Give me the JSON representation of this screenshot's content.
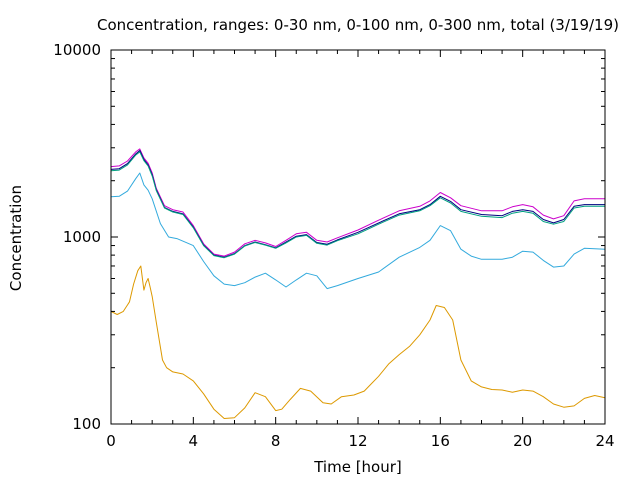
{
  "chart_data": {
    "type": "line",
    "title": "Concentration, ranges: 0-30 nm, 0-100 nm, 0-300 nm, total (3/19/19)",
    "xlabel": "Time [hour]",
    "ylabel": "Concentration",
    "xlim": [
      0,
      24
    ],
    "ylim": [
      100,
      10000
    ],
    "yscale": "log",
    "grid": false,
    "x_ticks": [
      0,
      4,
      8,
      12,
      16,
      20,
      24
    ],
    "x_tick_labels": [
      "0",
      "4",
      "8",
      "12",
      "16",
      "20",
      "24"
    ],
    "y_ticks": [
      100,
      1000,
      10000
    ],
    "y_tick_labels": [
      "100",
      "1000",
      "10000"
    ],
    "series": [
      {
        "color": "#cc00cc",
        "x": [
          0,
          0.4,
          0.8,
          1.2,
          1.4,
          1.6,
          1.8,
          2.0,
          2.2,
          2.6,
          3.0,
          3.5,
          4.0,
          4.5,
          5.0,
          5.5,
          6.0,
          6.5,
          7.0,
          7.5,
          8.0,
          8.5,
          9.0,
          9.5,
          10.0,
          10.5,
          11.0,
          12.0,
          13.0,
          14.0,
          15.0,
          15.5,
          16.0,
          16.5,
          17.0,
          18.0,
          19.0,
          19.5,
          20.0,
          20.5,
          21.0,
          21.5,
          22.0,
          22.5,
          23.0,
          24.0
        ],
        "y": [
          2380,
          2400,
          2550,
          2850,
          2960,
          2650,
          2480,
          2200,
          1820,
          1470,
          1400,
          1360,
          1150,
          920,
          810,
          790,
          830,
          920,
          960,
          930,
          890,
          960,
          1040,
          1060,
          960,
          940,
          990,
          1090,
          1230,
          1380,
          1460,
          1560,
          1730,
          1620,
          1470,
          1380,
          1380,
          1450,
          1490,
          1450,
          1310,
          1250,
          1300,
          1560,
          1600,
          1600
        ]
      },
      {
        "color": "#000080",
        "x": [
          0,
          0.4,
          0.8,
          1.2,
          1.4,
          1.6,
          1.8,
          2.0,
          2.2,
          2.6,
          3.0,
          3.5,
          4.0,
          4.5,
          5.0,
          5.5,
          6.0,
          6.5,
          7.0,
          7.5,
          8.0,
          8.5,
          9.0,
          9.5,
          10.0,
          10.5,
          11.0,
          12.0,
          13.0,
          14.0,
          15.0,
          15.5,
          16.0,
          16.5,
          17.0,
          18.0,
          19.0,
          19.5,
          20.0,
          20.5,
          21.0,
          21.5,
          22.0,
          22.5,
          23.0,
          24.0
        ],
        "y": [
          2300,
          2320,
          2470,
          2780,
          2900,
          2600,
          2430,
          2150,
          1790,
          1440,
          1370,
          1330,
          1130,
          905,
          800,
          780,
          815,
          900,
          940,
          910,
          875,
          940,
          1010,
          1030,
          935,
          915,
          965,
          1060,
          1190,
          1330,
          1400,
          1490,
          1650,
          1550,
          1400,
          1320,
          1300,
          1370,
          1400,
          1370,
          1240,
          1190,
          1240,
          1460,
          1490,
          1490
        ]
      },
      {
        "color": "#00a080",
        "x": [
          0,
          0.4,
          0.8,
          1.2,
          1.4,
          1.6,
          1.8,
          2.0,
          2.2,
          2.6,
          3.0,
          3.5,
          4.0,
          4.5,
          5.0,
          5.5,
          6.0,
          6.5,
          7.0,
          7.5,
          8.0,
          8.5,
          9.0,
          9.5,
          10.0,
          10.5,
          11.0,
          12.0,
          13.0,
          14.0,
          15.0,
          15.5,
          16.0,
          16.5,
          17.0,
          18.0,
          19.0,
          19.5,
          20.0,
          20.5,
          21.0,
          21.5,
          22.0,
          22.5,
          23.0,
          24.0
        ],
        "y": [
          2260,
          2280,
          2430,
          2740,
          2850,
          2560,
          2400,
          2120,
          1770,
          1430,
          1360,
          1320,
          1120,
          900,
          795,
          775,
          810,
          895,
          935,
          905,
          870,
          930,
          1000,
          1020,
          925,
          905,
          955,
          1040,
          1170,
          1310,
          1380,
          1470,
          1620,
          1520,
          1370,
          1290,
          1270,
          1340,
          1370,
          1340,
          1210,
          1170,
          1210,
          1430,
          1460,
          1460
        ]
      },
      {
        "color": "#33aadd",
        "x": [
          0,
          0.4,
          0.8,
          1.2,
          1.4,
          1.6,
          1.8,
          2.0,
          2.4,
          2.8,
          3.2,
          4.0,
          4.5,
          5.0,
          5.5,
          6.0,
          6.5,
          7.0,
          7.5,
          8.0,
          8.5,
          9.0,
          9.5,
          10.0,
          10.5,
          11.0,
          12.0,
          13.0,
          14.0,
          15.0,
          15.5,
          16.0,
          16.5,
          17.0,
          17.5,
          18.0,
          19.0,
          19.5,
          20.0,
          20.5,
          21.0,
          21.5,
          22.0,
          22.5,
          23.0,
          24.0
        ],
        "y": [
          1640,
          1650,
          1760,
          2050,
          2200,
          1900,
          1780,
          1600,
          1180,
          1000,
          980,
          900,
          740,
          620,
          560,
          550,
          570,
          610,
          640,
          590,
          540,
          590,
          640,
          620,
          530,
          550,
          600,
          650,
          780,
          880,
          960,
          1150,
          1080,
          860,
          790,
          760,
          760,
          780,
          840,
          830,
          750,
          690,
          700,
          810,
          870,
          860
        ]
      },
      {
        "color": "#dd9900",
        "x": [
          0,
          0.3,
          0.6,
          0.9,
          1.1,
          1.3,
          1.45,
          1.6,
          1.7,
          1.8,
          1.9,
          2.0,
          2.2,
          2.5,
          2.7,
          3.0,
          3.5,
          4.0,
          4.5,
          5.0,
          5.5,
          6.0,
          6.5,
          7.0,
          7.5,
          8.0,
          8.3,
          8.7,
          9.2,
          9.7,
          10.3,
          10.7,
          11.2,
          11.8,
          12.3,
          13.0,
          13.5,
          14.0,
          14.5,
          15.0,
          15.5,
          15.8,
          16.2,
          16.6,
          17.0,
          17.5,
          18.0,
          18.5,
          19.0,
          19.5,
          20.0,
          20.5,
          21.0,
          21.5,
          22.0,
          22.5,
          23.0,
          23.5,
          24.0
        ],
        "y": [
          400,
          385,
          400,
          450,
          560,
          660,
          700,
          520,
          570,
          600,
          540,
          480,
          350,
          220,
          200,
          190,
          185,
          170,
          145,
          120,
          107,
          108,
          122,
          147,
          140,
          118,
          120,
          135,
          155,
          150,
          130,
          128,
          140,
          143,
          150,
          180,
          210,
          235,
          260,
          300,
          360,
          430,
          420,
          360,
          220,
          170,
          158,
          153,
          152,
          148,
          152,
          150,
          140,
          128,
          123,
          125,
          137,
          142,
          138
        ]
      }
    ]
  }
}
